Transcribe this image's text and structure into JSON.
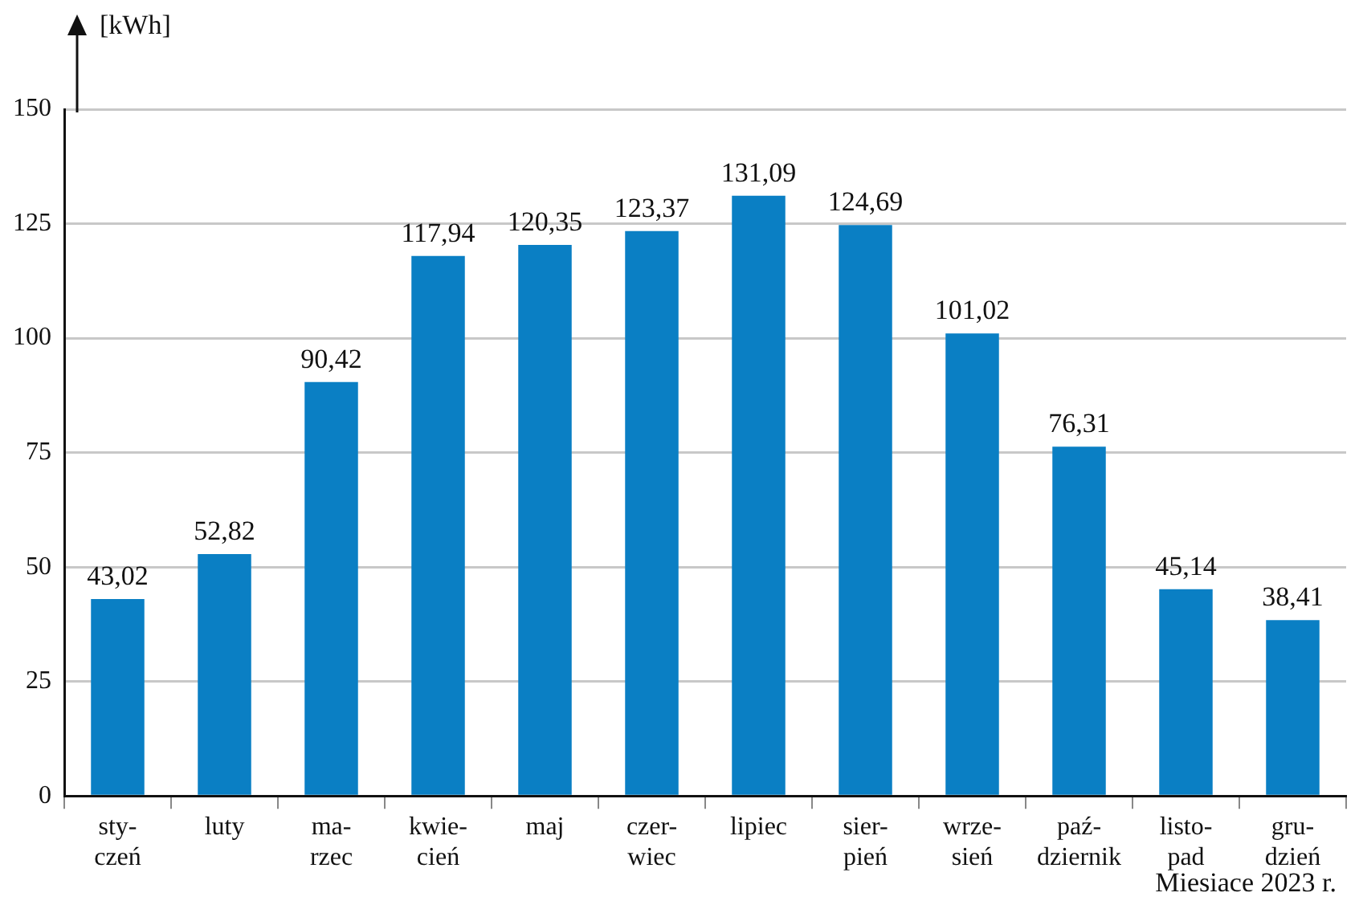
{
  "chart_data": {
    "type": "bar",
    "ylabel": "[kWh]",
    "xlabel": "Miesiace 2023 r.",
    "categories": [
      "sty-\nczeń",
      "luty",
      "ma-\nrzec",
      "kwie-\ncień",
      "maj",
      "czer-\nwiec",
      "lipiec",
      "sier-\npień",
      "wrze-\nsień",
      "paź-\ndziernik",
      "listo-\npad",
      "gru-\ndzień"
    ],
    "values": [
      43.02,
      52.82,
      90.42,
      117.94,
      120.35,
      123.37,
      131.09,
      124.69,
      101.02,
      76.31,
      45.14,
      38.41
    ],
    "value_labels": [
      "43,02",
      "52,82",
      "90,42",
      "117,94",
      "120,35",
      "123,37",
      "131,09",
      "124,69",
      "101,02",
      "76,31",
      "45,14",
      "38,41"
    ],
    "color": "#0a7fc4",
    "ylim": [
      0,
      150
    ],
    "yticks": [
      0,
      25,
      50,
      75,
      100,
      125,
      150
    ],
    "grid": "y",
    "legend": false
  }
}
